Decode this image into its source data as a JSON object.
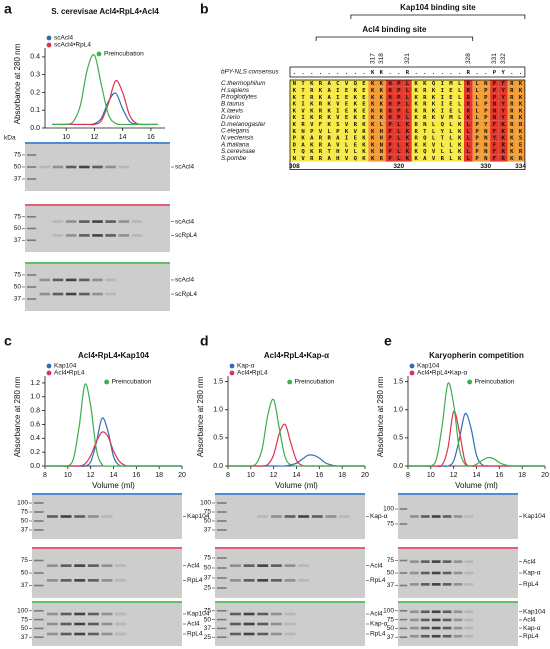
{
  "chart_data": [
    {
      "type": "line",
      "title": "S. cerevisae Acl4•RpL4•Acl4",
      "x_label": "Volume (ml)",
      "y_label": "Absorbance at 280 nm",
      "xlim": [
        8.5,
        17
      ],
      "xticks": [
        10,
        12,
        14,
        16
      ],
      "ylim": [
        0,
        0.45
      ],
      "yticks": [
        {
          "value": 0,
          "label": "0.0"
        },
        0.1,
        0.2,
        0.3,
        0.4
      ],
      "x": [
        9,
        9.5,
        10,
        10.5,
        11,
        11.5,
        12,
        12.5,
        13,
        13.5,
        14,
        14.5,
        15,
        15.5,
        16,
        16.5
      ],
      "series": [
        {
          "name": "scAcl4",
          "color": "#2f6db5",
          "values": [
            0.02,
            0.02,
            0.02,
            0.02,
            0.02,
            0.02,
            0.024,
            0.056,
            0.15,
            0.196,
            0.108,
            0.036,
            0.022,
            0.02,
            0.02,
            0.02
          ]
        },
        {
          "name": "scAcl4•RpL4",
          "color": "#d9344f",
          "values": [
            0.02,
            0.02,
            0.02,
            0.02,
            0.02,
            0.02,
            0.02,
            0.042,
            0.14,
            0.265,
            0.2,
            0.07,
            0.025,
            0.02,
            0.02,
            0.02
          ]
        },
        {
          "name": "Preincubation",
          "color": "#3cae4a",
          "values": [
            0.02,
            0.02,
            0.021,
            0.036,
            0.125,
            0.33,
            0.41,
            0.24,
            0.074,
            0.026,
            0.02,
            0.02,
            0.02,
            0.02,
            0.02,
            0.02
          ]
        }
      ]
    },
    {
      "type": "line",
      "title": "Acl4•RpL4•Kap104",
      "x_label": "Volume (ml)",
      "y_label": "Absorbance at 280 nm",
      "xlim": [
        8,
        20
      ],
      "xticks": [
        8,
        10,
        12,
        14,
        16,
        18,
        20
      ],
      "ylim": [
        0,
        1.3
      ],
      "yticks": [
        {
          "value": 0,
          "label": "0.0"
        },
        0.2,
        0.4,
        0.6,
        0.8,
        {
          "value": 1,
          "label": "1.0"
        },
        1.2
      ],
      "x": [
        8,
        8.5,
        9,
        9.5,
        10,
        10.5,
        11,
        11.5,
        12,
        12.5,
        13,
        13.5,
        14,
        14.5,
        15,
        15.5,
        16,
        16.5,
        17,
        17.5,
        18,
        18.5,
        19,
        19.5,
        20
      ],
      "series": [
        {
          "name": "Kap104",
          "color": "#2f6db5",
          "values": [
            0,
            0,
            0,
            0,
            0,
            0,
            0,
            0,
            0.06,
            0.34,
            0.69,
            0.51,
            0.14,
            0.01,
            0,
            0,
            0,
            0,
            0,
            0,
            0,
            0,
            0,
            0,
            0
          ]
        },
        {
          "name": "Acl4•RpL4",
          "color": "#d9344f",
          "values": [
            0,
            0,
            0,
            0,
            0,
            0,
            0,
            0.03,
            0.15,
            0.35,
            0.49,
            0.43,
            0.22,
            0.07,
            0.01,
            0,
            0,
            0,
            0,
            0,
            0,
            0,
            0,
            0,
            0
          ]
        },
        {
          "name": "Preincubation",
          "color": "#3cae4a",
          "values": [
            0,
            0,
            0,
            0,
            0,
            0.11,
            0.58,
            1.18,
            0.87,
            0.24,
            0.02,
            0,
            0,
            0,
            0,
            0,
            0,
            0,
            0,
            0,
            0,
            0,
            0,
            0,
            0
          ]
        }
      ]
    },
    {
      "type": "line",
      "title": "Acl4•RpL4•Kap-α",
      "x_label": "Volume (ml)",
      "y_label": "Absorbance at 280 nm",
      "xlim": [
        8,
        20
      ],
      "xticks": [
        8,
        10,
        12,
        14,
        16,
        18,
        20
      ],
      "ylim": [
        0,
        1.6
      ],
      "yticks": [
        {
          "value": 0,
          "label": "0.0"
        },
        0.5,
        {
          "value": 1,
          "label": "1.0"
        },
        1.5
      ],
      "x": [
        8,
        8.5,
        9,
        9.5,
        10,
        10.5,
        11,
        11.5,
        12,
        12.5,
        13,
        13.5,
        14,
        14.5,
        15,
        15.5,
        16,
        16.5,
        17,
        17.5,
        18,
        18.5,
        19,
        19.5,
        20
      ],
      "series": [
        {
          "name": "Kap-α",
          "color": "#2f6db5",
          "values": [
            0,
            0,
            0,
            0,
            0,
            0,
            0,
            0,
            0,
            0,
            0,
            0.02,
            0.05,
            0.12,
            0.19,
            0.19,
            0.14,
            0.06,
            0.02,
            0,
            0,
            0,
            0,
            0,
            0
          ]
        },
        {
          "name": "Acl4•RpL4",
          "color": "#d9344f",
          "values": [
            0,
            0,
            0,
            0,
            0,
            0,
            0,
            0.03,
            0.2,
            0.58,
            0.74,
            0.41,
            0.1,
            0.01,
            0,
            0,
            0,
            0,
            0,
            0,
            0,
            0,
            0,
            0,
            0
          ]
        },
        {
          "name": "Preincubation",
          "color": "#3cae4a",
          "values": [
            0,
            0,
            0,
            0,
            0,
            0.05,
            0.31,
            0.92,
            1.18,
            0.66,
            0.16,
            0.02,
            0,
            0,
            0,
            0,
            0,
            0,
            0,
            0,
            0,
            0,
            0,
            0,
            0
          ]
        }
      ]
    },
    {
      "type": "line",
      "title": "Karyopherin competition",
      "x_label": "Volume (ml)",
      "y_label": "Absorbance at 280 nm",
      "xlim": [
        8,
        20
      ],
      "xticks": [
        8,
        10,
        12,
        14,
        16,
        18,
        20
      ],
      "ylim": [
        0,
        1.6
      ],
      "yticks": [
        {
          "value": 0,
          "label": "0.0"
        },
        0.5,
        {
          "value": 1,
          "label": "1.0"
        },
        1.5
      ],
      "x": [
        8,
        8.5,
        9,
        9.5,
        10,
        10.5,
        11,
        11.5,
        12,
        12.5,
        13,
        13.5,
        14,
        14.5,
        15,
        15.5,
        16,
        16.5,
        17,
        17.5,
        18,
        18.5,
        19,
        19.5,
        20
      ],
      "series": [
        {
          "name": "Kap104",
          "color": "#2f6db5",
          "values": [
            0,
            0,
            0,
            0,
            0,
            0,
            0,
            0,
            0.09,
            0.48,
            0.93,
            0.69,
            0.19,
            0.02,
            0,
            0,
            0,
            0,
            0,
            0,
            0,
            0,
            0,
            0,
            0
          ]
        },
        {
          "name": "Acl4•RpL4•Kap-α",
          "color": "#d9344f",
          "values": [
            0,
            0,
            0,
            0,
            0,
            0,
            0.02,
            0.32,
            0.97,
            0.61,
            0.08,
            0,
            0,
            0,
            0,
            0,
            0,
            0,
            0,
            0,
            0,
            0,
            0,
            0,
            0
          ]
        },
        {
          "name": "Preincubation",
          "color": "#3cae4a",
          "values": [
            0,
            0,
            0,
            0,
            0,
            0.13,
            0.73,
            1.47,
            1.09,
            0.3,
            0.03,
            0,
            0.03,
            0.1,
            0.15,
            0.13,
            0.06,
            0.02,
            0,
            0,
            0,
            0,
            0,
            0,
            0
          ]
        }
      ]
    }
  ],
  "panels": {
    "a": {
      "label": "a",
      "kda": "kDa",
      "gels": [
        {
          "ladder": [
            75,
            50,
            37
          ],
          "labels": [
            "scAcl4"
          ]
        },
        {
          "ladder": [
            75,
            50,
            37
          ],
          "labels": [
            "scAcl4",
            "scRpL4"
          ]
        },
        {
          "ladder": [
            75,
            50,
            37
          ],
          "labels": [
            "scAcl4",
            "scRpL4"
          ]
        }
      ]
    },
    "b": {
      "label": "b",
      "kap104_site": "Kap104 binding site",
      "acl4_site": "Acl4 binding site",
      "positions": [
        "317",
        "318",
        "321",
        "328",
        "331",
        "332"
      ],
      "consensus_label": "bPY-NLS consensus",
      "consensus": ".........KK..R......R..PY..",
      "species": [
        "C.thermophilum",
        "H.sapiens",
        "P.troglodytes",
        "B.taurus",
        "X.laevis",
        "D.rerio",
        "D.melanogaster",
        "C.elegans",
        "N.vectensis",
        "A.thaliana",
        "S.cerevisiae",
        "S.pombe"
      ],
      "sequences": [
        "NTKRACVQEKKNPLKKQIMLRLNPFRK",
        "KTRKAIEKEKKHPLKRKIELRLPPYRK",
        "KTRKAIEKEKKHPLKRKIELRLPPYRK",
        "KIKRKVEKEKKHPLKRKIELRLPNYRK",
        "KVKRKIEKEKKHPLKRKIELKLPNYRK",
        "KIKRKVEKEKKHPLKRKVMLKLPNYRK",
        "KRVFKSVRKKLPLKRNLQLKLPYFKRR",
        "KNPVLPKVRKHPLKRTLYLKLPNFKRK",
        "PKARRAIEKKHPLKRQLTLKLPNYKKS",
        "DAKRAVLEKKNPLKKKVLLKLPNFRKE",
        "TQKRTHVLKKNPLKKQVLLKLPNFRKR",
        "NVRRAHVQKKRPLKKAVRLKLPNFRKR"
      ],
      "numbering": [
        "308",
        "320",
        "330",
        "334"
      ]
    },
    "c": {
      "label": "c",
      "gels": [
        {
          "ladder": [
            100,
            75,
            50,
            37
          ],
          "labels": [
            "Kap104"
          ]
        },
        {
          "ladder": [
            75,
            50,
            37
          ],
          "labels": [
            "Acl4",
            "RpL4"
          ]
        },
        {
          "ladder": [
            100,
            75,
            50,
            37
          ],
          "labels": [
            "Kap104",
            "Acl4",
            "RpL4"
          ]
        }
      ]
    },
    "d": {
      "label": "d",
      "gels": [
        {
          "ladder": [
            100,
            75,
            50,
            37
          ],
          "labels": [
            "Kap-α"
          ]
        },
        {
          "ladder": [
            75,
            50,
            37,
            25
          ],
          "labels": [
            "Acl4",
            "RpL4"
          ]
        },
        {
          "ladder": [
            75,
            50,
            37,
            25
          ],
          "labels": [
            "Acl4",
            "Kap-α",
            "RpL4"
          ]
        }
      ]
    },
    "e": {
      "label": "e",
      "gels": [
        {
          "ladder": [
            100,
            75
          ],
          "labels": [
            "Kap104"
          ]
        },
        {
          "ladder": [
            75,
            50,
            37
          ],
          "labels": [
            "Acl4",
            "Kap-α",
            "RpL4"
          ]
        },
        {
          "ladder": [
            100,
            75,
            50,
            37
          ],
          "labels": [
            "Kap104",
            "Acl4",
            "Kap-α",
            "RpL4"
          ]
        }
      ]
    }
  }
}
